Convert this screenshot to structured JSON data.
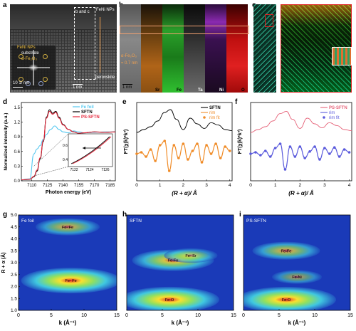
{
  "panels": {
    "a": "a",
    "b": "b",
    "c": "c",
    "d": "d",
    "e": "e",
    "f": "f",
    "g": "g",
    "h": "h",
    "i": "i"
  },
  "panel_a": {
    "label_feni_top": "FeNi NPs",
    "label_b_and_c": "b and c",
    "label_perovskite": "perovskite",
    "label_scale1": "1 nm",
    "label_scale2": "10 1/ nm",
    "legend_feni": "FeNi NPs",
    "legend_substrate": "substrate",
    "legend_fe2o3": "α-Fe₂O₃"
  },
  "panel_b": {
    "channels": [
      "Sr",
      "Fe",
      "Ta",
      "Ni",
      "O"
    ],
    "label_phase": "α-Fe₂O₃",
    "label_thickness": "≈ 0.7 nm",
    "label_scale": "1 nm"
  },
  "chart_data": [
    {
      "panel": "d",
      "type": "line",
      "xlabel": "Photon energy (eV)",
      "ylabel": "Normalized intensity (a.u.)",
      "xticks": [
        "7110",
        "7125",
        "7140",
        "7155",
        "7170",
        "7185"
      ],
      "yticks": [
        "0.0",
        "0.3",
        "0.6",
        "0.9",
        "1.2",
        "1.5"
      ],
      "xlim": [
        7100,
        7190
      ],
      "ylim": [
        0,
        1.6
      ],
      "series": [
        {
          "name": "Fe foil",
          "color": "#55c8f0",
          "x": [
            7100,
            7108,
            7112,
            7115,
            7118,
            7121,
            7124,
            7128,
            7132,
            7136,
            7140,
            7145,
            7150,
            7155,
            7160,
            7170,
            7180,
            7190
          ],
          "y": [
            0.02,
            0.04,
            0.55,
            0.65,
            0.72,
            0.85,
            0.95,
            1.05,
            1.12,
            1.05,
            1.0,
            0.98,
            1.02,
            1.0,
            0.98,
            0.99,
            1.0,
            1.0
          ]
        },
        {
          "name": "SFTN",
          "color": "#000000",
          "x": [
            7100,
            7108,
            7112,
            7115,
            7118,
            7121,
            7124,
            7127,
            7130,
            7133,
            7136,
            7140,
            7145,
            7150,
            7155,
            7160,
            7170,
            7180,
            7190
          ],
          "y": [
            0.02,
            0.03,
            0.08,
            0.2,
            0.45,
            0.8,
            1.3,
            1.45,
            1.38,
            1.42,
            1.3,
            1.15,
            1.05,
            1.0,
            0.97,
            0.98,
            1.0,
            0.99,
            1.0
          ]
        },
        {
          "name": "PS-SFTN",
          "color": "#e6283c",
          "x": [
            7100,
            7108,
            7112,
            7115,
            7118,
            7121,
            7124,
            7127,
            7130,
            7133,
            7136,
            7140,
            7145,
            7150,
            7155,
            7160,
            7170,
            7180,
            7190
          ],
          "y": [
            0.02,
            0.03,
            0.09,
            0.22,
            0.47,
            0.82,
            1.28,
            1.42,
            1.36,
            1.4,
            1.28,
            1.14,
            1.05,
            1.0,
            0.97,
            0.98,
            1.0,
            0.99,
            1.0
          ]
        }
      ],
      "inset": {
        "xticks": [
          "7122",
          "7124",
          "7126"
        ],
        "yticks": [
          "0.4",
          "0.6"
        ]
      }
    },
    {
      "panel": "e",
      "type": "line",
      "xlabel": "(R + α)/ Å",
      "ylabel": "FT(χ(k)*k³)",
      "xticks": [
        "0",
        "1",
        "2",
        "3",
        "4"
      ],
      "xlim": [
        0,
        4.1
      ],
      "series": [
        {
          "name": "SFTN",
          "color": "#000000",
          "x": [
            0,
            0.3,
            0.6,
            0.9,
            1.2,
            1.45,
            1.7,
            2.0,
            2.3,
            2.6,
            2.9,
            3.2,
            3.5,
            3.8,
            4.1
          ],
          "y": [
            0.55,
            0.6,
            0.65,
            0.75,
            0.9,
            0.95,
            0.78,
            0.6,
            0.8,
            0.7,
            0.62,
            0.72,
            0.68,
            0.6,
            0.58
          ]
        },
        {
          "name": "rim",
          "color": "#f08c28",
          "x": [
            0,
            0.2,
            0.4,
            0.6,
            0.8,
            1.0,
            1.2,
            1.4,
            1.6,
            1.8,
            2.0,
            2.2,
            2.4,
            2.6,
            2.8,
            3.0,
            3.2,
            3.4,
            3.6,
            3.8,
            4.0
          ],
          "y": [
            0,
            0.05,
            -0.1,
            0.15,
            -0.25,
            0.3,
            0.45,
            -0.6,
            0.3,
            -0.15,
            0.35,
            -0.2,
            0.1,
            0.35,
            -0.3,
            0.3,
            0.0,
            0.35,
            -0.15,
            0.25,
            0.1
          ]
        }
      ],
      "legend_fit": "rim fit"
    },
    {
      "panel": "f",
      "type": "line",
      "xlabel": "(R + α)/ Å",
      "ylabel": "FT(χ(k)*k³)",
      "xticks": [
        "0",
        "1",
        "2",
        "3",
        "4"
      ],
      "xlim": [
        0,
        4.1
      ],
      "series": [
        {
          "name": "PS-SFTN",
          "color": "#e6647a",
          "x": [
            0,
            0.3,
            0.6,
            0.9,
            1.2,
            1.45,
            1.7,
            2.0,
            2.3,
            2.6,
            2.9,
            3.2,
            3.5,
            3.8,
            4.1
          ],
          "y": [
            0.55,
            0.6,
            0.65,
            0.75,
            0.88,
            0.92,
            0.78,
            0.62,
            0.8,
            0.7,
            0.63,
            0.72,
            0.67,
            0.6,
            0.58
          ]
        },
        {
          "name": "rim",
          "color": "#5a5adc",
          "x": [
            0,
            0.2,
            0.4,
            0.6,
            0.8,
            1.0,
            1.2,
            1.4,
            1.6,
            1.8,
            2.0,
            2.2,
            2.4,
            2.6,
            2.8,
            3.0,
            3.2,
            3.4,
            3.6,
            3.8,
            4.0
          ],
          "y": [
            0,
            0.05,
            -0.05,
            0.1,
            -0.1,
            0.2,
            0.35,
            -0.55,
            0.25,
            -0.1,
            0.25,
            -0.15,
            0.08,
            0.25,
            -0.2,
            0.2,
            0.0,
            0.22,
            -0.1,
            0.15,
            0.05
          ]
        }
      ],
      "legend_fit": "rim fit"
    },
    {
      "panel": "g",
      "type": "heatmap",
      "title": "Fe foil",
      "xlabel": "k (Å⁻¹)",
      "ylabel": "R + α (Å)",
      "xticks": [
        "0",
        "5",
        "10",
        "15"
      ],
      "yticks": [
        "1.0",
        "1.5",
        "2.0",
        "2.5",
        "3.0",
        "3.5",
        "4.0",
        "4.5",
        "5.0"
      ],
      "xlim": [
        0,
        15
      ],
      "ylim": [
        1,
        5
      ],
      "peaks": [
        {
          "label": "Fe- Fe",
          "k": 8,
          "r": 2.25,
          "strength": 1.0
        },
        {
          "label": "Fe- Fe",
          "k": 7.5,
          "r": 4.5,
          "strength": 0.5
        }
      ]
    },
    {
      "panel": "h",
      "type": "heatmap",
      "title": "SFTN",
      "xlabel": "k (Å⁻¹)",
      "ylabel": "",
      "xticks": [
        "0",
        "5",
        "10",
        "15"
      ],
      "xlim": [
        0,
        15
      ],
      "ylim": [
        1,
        5
      ],
      "peaks": [
        {
          "label": "Fe-O",
          "k": 6,
          "r": 1.45,
          "strength": 1.0
        },
        {
          "label": "Fe-Fe",
          "k": 6.5,
          "r": 3.1,
          "strength": 0.75
        },
        {
          "label": "Fe- Sr",
          "k": 9,
          "r": 3.3,
          "strength": 0.35
        }
      ]
    },
    {
      "panel": "i",
      "type": "heatmap",
      "title": "PS-SFTN",
      "xlabel": "k (Å⁻¹)",
      "ylabel": "",
      "xticks": [
        "0",
        "5",
        "10",
        "15"
      ],
      "xlim": [
        0,
        15
      ],
      "ylim": [
        1,
        5
      ],
      "peaks": [
        {
          "label": "Fe-O",
          "k": 6,
          "r": 1.45,
          "strength": 1.0
        },
        {
          "label": "Fe-Fe",
          "k": 6,
          "r": 3.5,
          "strength": 0.55
        },
        {
          "label": "Fe-Ni",
          "k": 7.5,
          "r": 2.4,
          "strength": 0.3
        }
      ]
    }
  ]
}
